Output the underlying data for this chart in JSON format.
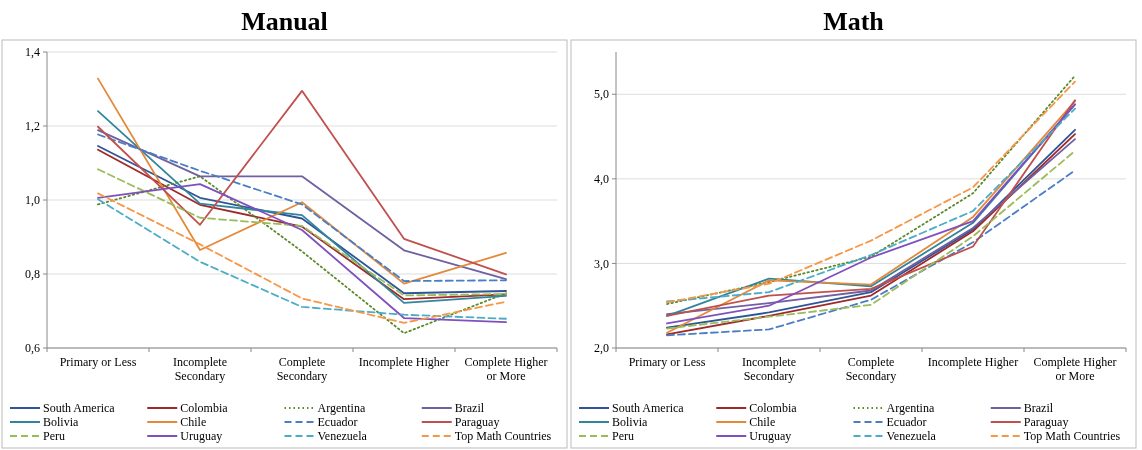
{
  "chart_data": [
    {
      "type": "line",
      "title": "Manual",
      "categories": [
        "Primary or Less",
        "Incomplete Secondary",
        "Complete Secondary",
        "Incomplete Higher",
        "Complete Higher or More"
      ],
      "ylim": [
        0.6,
        1.4
      ],
      "yticks": [
        {
          "value": 0.6,
          "label": "0,6"
        },
        {
          "value": 0.8,
          "label": "0,8"
        },
        {
          "value": 1.0,
          "label": "1,0"
        },
        {
          "value": 1.2,
          "label": "1,2"
        },
        {
          "value": 1.4,
          "label": "1,4"
        }
      ],
      "grid": "y",
      "legend": "bottom",
      "series": [
        {
          "name": "South America",
          "color": "#2f5597",
          "line_style": "solid",
          "values": [
            1.146,
            1.006,
            0.95,
            0.748,
            0.754
          ]
        },
        {
          "name": "Colombia",
          "color": "#9e2a2b",
          "line_style": "solid",
          "values": [
            1.136,
            0.987,
            0.928,
            0.732,
            0.745
          ]
        },
        {
          "name": "Argentina",
          "color": "#5a8a2a",
          "line_style": "dotted",
          "values": [
            0.988,
            1.064,
            0.861,
            0.64,
            0.748
          ]
        },
        {
          "name": "Brazil",
          "color": "#7060a0",
          "line_style": "solid",
          "values": [
            1.189,
            1.064,
            1.064,
            0.864,
            0.786
          ]
        },
        {
          "name": "Bolivia",
          "color": "#31859c",
          "line_style": "solid",
          "values": [
            1.24,
            0.99,
            0.959,
            0.722,
            0.741
          ]
        },
        {
          "name": "Chile",
          "color": "#e3893a",
          "line_style": "solid",
          "values": [
            1.328,
            0.865,
            0.994,
            0.774,
            0.857
          ]
        },
        {
          "name": "Ecuador",
          "color": "#4a7ec4",
          "line_style": "dashed",
          "values": [
            1.177,
            1.079,
            0.988,
            0.781,
            0.783
          ]
        },
        {
          "name": "Paraguay",
          "color": "#c0504d",
          "line_style": "solid",
          "values": [
            1.198,
            0.933,
            1.295,
            0.895,
            0.799
          ]
        },
        {
          "name": "Peru",
          "color": "#9bbb59",
          "line_style": "dashed",
          "values": [
            1.083,
            0.952,
            0.93,
            0.742,
            0.746
          ]
        },
        {
          "name": "Uruguay",
          "color": "#7f4fbf",
          "line_style": "solid",
          "values": [
            1.006,
            1.043,
            0.919,
            0.681,
            0.67
          ]
        },
        {
          "name": "Venezuela",
          "color": "#4bacc6",
          "line_style": "dashed",
          "values": [
            1.002,
            0.833,
            0.711,
            0.69,
            0.679
          ]
        },
        {
          "name": "Top Math Countries",
          "color": "#f79646",
          "line_style": "dashed",
          "values": [
            1.018,
            0.88,
            0.734,
            0.668,
            0.725
          ]
        }
      ]
    },
    {
      "type": "line",
      "title": "Math",
      "categories": [
        "Primary or Less",
        "Incomplete Secondary",
        "Complete Secondary",
        "Incomplete Higher",
        "Complete Higher or More"
      ],
      "ylim": [
        2.0,
        5.5
      ],
      "yticks": [
        {
          "value": 2.0,
          "label": "2,0"
        },
        {
          "value": 3.0,
          "label": "3,0"
        },
        {
          "value": 4.0,
          "label": "4,0"
        },
        {
          "value": 5.0,
          "label": "5,0"
        }
      ],
      "grid": "y",
      "legend": "bottom",
      "series": [
        {
          "name": "South America",
          "color": "#2f5597",
          "line_style": "solid",
          "values": [
            2.24,
            2.42,
            2.66,
            3.4,
            4.58
          ]
        },
        {
          "name": "Colombia",
          "color": "#9e2a2b",
          "line_style": "solid",
          "values": [
            2.16,
            2.38,
            2.62,
            3.38,
            4.53
          ]
        },
        {
          "name": "Argentina",
          "color": "#5a8a2a",
          "line_style": "dotted",
          "values": [
            2.52,
            2.78,
            3.08,
            3.83,
            5.22
          ]
        },
        {
          "name": "Brazil",
          "color": "#7060a0",
          "line_style": "solid",
          "values": [
            2.4,
            2.53,
            2.68,
            3.42,
            4.47
          ]
        },
        {
          "name": "Bolivia",
          "color": "#31859c",
          "line_style": "solid",
          "values": [
            2.38,
            2.82,
            2.73,
            3.48,
            4.88
          ]
        },
        {
          "name": "Chile",
          "color": "#e3893a",
          "line_style": "solid",
          "values": [
            2.18,
            2.8,
            2.75,
            3.55,
            4.92
          ]
        },
        {
          "name": "Ecuador",
          "color": "#4a7ec4",
          "line_style": "dashed",
          "values": [
            2.15,
            2.22,
            2.57,
            3.25,
            4.1
          ]
        },
        {
          "name": "Paraguay",
          "color": "#c0504d",
          "line_style": "solid",
          "values": [
            2.38,
            2.62,
            2.7,
            3.2,
            4.93
          ]
        },
        {
          "name": "Peru",
          "color": "#9bbb59",
          "line_style": "dashed",
          "values": [
            2.23,
            2.37,
            2.51,
            3.32,
            4.33
          ]
        },
        {
          "name": "Uruguay",
          "color": "#7f4fbf",
          "line_style": "solid",
          "values": [
            2.29,
            2.5,
            3.07,
            3.5,
            4.88
          ]
        },
        {
          "name": "Venezuela",
          "color": "#4bacc6",
          "line_style": "dashed",
          "values": [
            2.55,
            2.66,
            3.1,
            3.62,
            4.83
          ]
        },
        {
          "name": "Top Math Countries",
          "color": "#f79646",
          "line_style": "dashed",
          "values": [
            2.54,
            2.76,
            3.27,
            3.9,
            5.15
          ]
        }
      ]
    }
  ]
}
